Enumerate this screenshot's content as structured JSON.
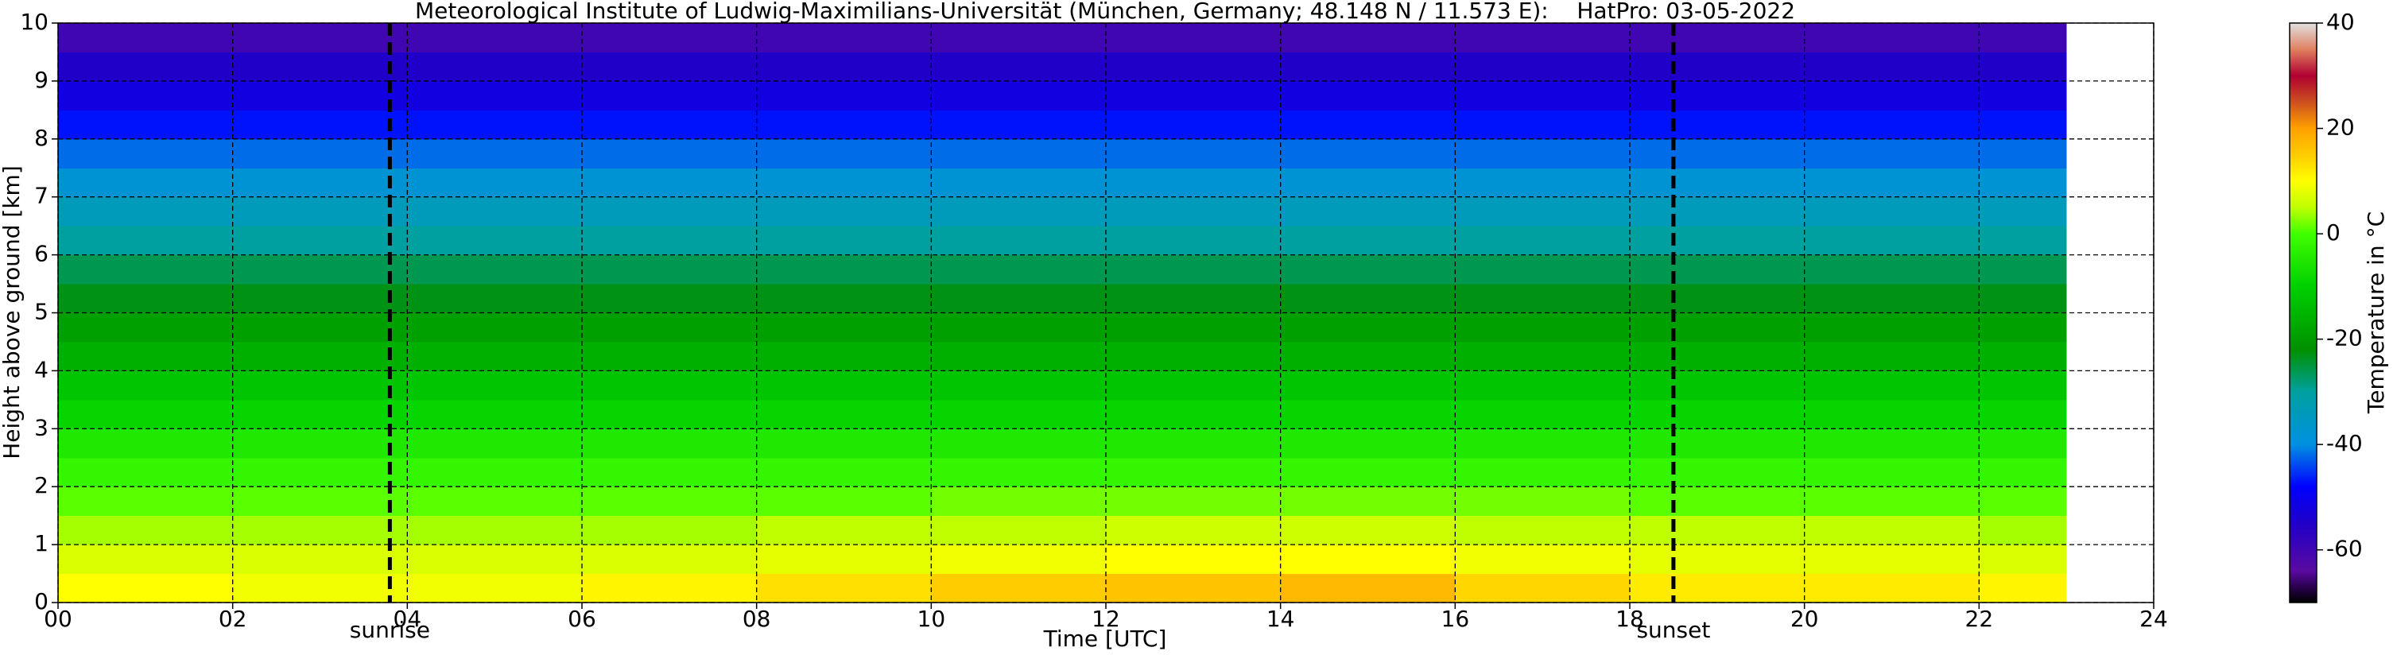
{
  "chart_data": {
    "type": "heatmap",
    "title": "Meteorological Institute of Ludwig-Maximilians-Universität (München, Germany; 48.148 N / 11.573 E):    HatPro: 03-05-2022",
    "x_label": "Time [UTC]",
    "y_label": "Height above ground [km]",
    "colorbar_label": "Temperature in °C",
    "xbins": [
      0,
      2,
      4,
      6,
      8,
      10,
      12,
      14,
      16,
      18,
      20,
      22,
      23
    ],
    "ybins": [
      0,
      0.5,
      1,
      1.5,
      2,
      2.5,
      3,
      3.5,
      4,
      4.5,
      5,
      5.5,
      6,
      6.5,
      7,
      7.5,
      8,
      8.5,
      9,
      9.5,
      10
    ],
    "values": [
      [
        10,
        9,
        9,
        11,
        13,
        15,
        16,
        17,
        14,
        12,
        12,
        11
      ],
      [
        7,
        7,
        7,
        7,
        8,
        9,
        10,
        10,
        9,
        8,
        8,
        7
      ],
      [
        4,
        4,
        4,
        4,
        5,
        5,
        6,
        6,
        5,
        5,
        5,
        4
      ],
      [
        1,
        1,
        1,
        1,
        1,
        2,
        2,
        2,
        2,
        1,
        1,
        1
      ],
      [
        -2,
        -2,
        -2,
        -2,
        -2,
        -2,
        -2,
        -2,
        -2,
        -2,
        -2,
        -2
      ],
      [
        -5,
        -5,
        -5,
        -5,
        -5,
        -5,
        -5,
        -5,
        -5,
        -5,
        -5,
        -5
      ],
      [
        -9,
        -9,
        -9,
        -9,
        -9,
        -9,
        -9,
        -9,
        -9,
        -9,
        -9,
        -9
      ],
      [
        -12,
        -12,
        -12,
        -12,
        -12,
        -12,
        -12,
        -12,
        -12,
        -12,
        -12,
        -12
      ],
      [
        -16,
        -16,
        -16,
        -16,
        -16,
        -16,
        -16,
        -16,
        -16,
        -16,
        -16,
        -16
      ],
      [
        -19,
        -19,
        -19,
        -19,
        -19,
        -19,
        -19,
        -19,
        -19,
        -19,
        -19,
        -19
      ],
      [
        -23,
        -23,
        -23,
        -23,
        -23,
        -23,
        -23,
        -23,
        -23,
        -23,
        -23,
        -23
      ],
      [
        -26,
        -26,
        -26,
        -26,
        -26,
        -26,
        -26,
        -26,
        -26,
        -26,
        -26,
        -26
      ],
      [
        -30,
        -30,
        -30,
        -30,
        -30,
        -30,
        -30,
        -30,
        -30,
        -30,
        -30,
        -30
      ],
      [
        -34,
        -34,
        -34,
        -34,
        -34,
        -34,
        -34,
        -34,
        -34,
        -34,
        -34,
        -34
      ],
      [
        -38,
        -38,
        -38,
        -38,
        -38,
        -38,
        -38,
        -38,
        -38,
        -38,
        -38,
        -38
      ],
      [
        -42,
        -42,
        -42,
        -42,
        -42,
        -42,
        -42,
        -42,
        -42,
        -42,
        -42,
        -42
      ],
      [
        -47,
        -47,
        -47,
        -47,
        -47,
        -47,
        -47,
        -47,
        -47,
        -47,
        -47,
        -47
      ],
      [
        -52,
        -52,
        -52,
        -52,
        -52,
        -52,
        -52,
        -52,
        -52,
        -52,
        -52,
        -52
      ],
      [
        -55,
        -55,
        -55,
        -55,
        -55,
        -55,
        -55,
        -55,
        -55,
        -55,
        -55,
        -55
      ],
      [
        -60,
        -60,
        -60,
        -60,
        -60,
        -60,
        -60,
        -60,
        -60,
        -60,
        -60,
        -60
      ]
    ],
    "xlim": [
      0,
      24
    ],
    "ylim": [
      0,
      10
    ],
    "xticks": [
      {
        "value": 0,
        "label": "00"
      },
      {
        "value": 2,
        "label": "02"
      },
      {
        "value": 4,
        "label": "04"
      },
      {
        "value": 6,
        "label": "06"
      },
      {
        "value": 8,
        "label": "08"
      },
      10,
      12,
      14,
      16,
      18,
      20,
      22,
      24
    ],
    "yticks": [
      0,
      1,
      2,
      3,
      4,
      5,
      6,
      7,
      8,
      9,
      10
    ],
    "clim": [
      -70,
      40
    ],
    "cticks": [
      -60,
      -40,
      -20,
      0,
      20,
      40
    ],
    "colorscale": [
      {
        "value": -70,
        "color": "#000000"
      },
      {
        "value": -67,
        "color": "#2a0050"
      },
      {
        "value": -64,
        "color": "#5a0aa0"
      },
      {
        "value": -55,
        "color": "#2000c8"
      },
      {
        "value": -48,
        "color": "#0000ff"
      },
      {
        "value": -40,
        "color": "#0090e0"
      },
      {
        "value": -30,
        "color": "#00a0a0"
      },
      {
        "value": -22,
        "color": "#009000"
      },
      {
        "value": -10,
        "color": "#00d000"
      },
      {
        "value": 0,
        "color": "#40ff00"
      },
      {
        "value": 5,
        "color": "#c0ff00"
      },
      {
        "value": 10,
        "color": "#ffff00"
      },
      {
        "value": 15,
        "color": "#ffcc00"
      },
      {
        "value": 20,
        "color": "#ffa000"
      },
      {
        "value": 25,
        "color": "#cc5020"
      },
      {
        "value": 30,
        "color": "#b00030"
      },
      {
        "value": 35,
        "color": "#e08060"
      },
      {
        "value": 40,
        "color": "#e0e0e0"
      }
    ],
    "grid": true,
    "vlines": [
      {
        "x": 3.8,
        "label": "sunrise"
      },
      {
        "x": 18.5,
        "label": "sunset"
      }
    ]
  }
}
